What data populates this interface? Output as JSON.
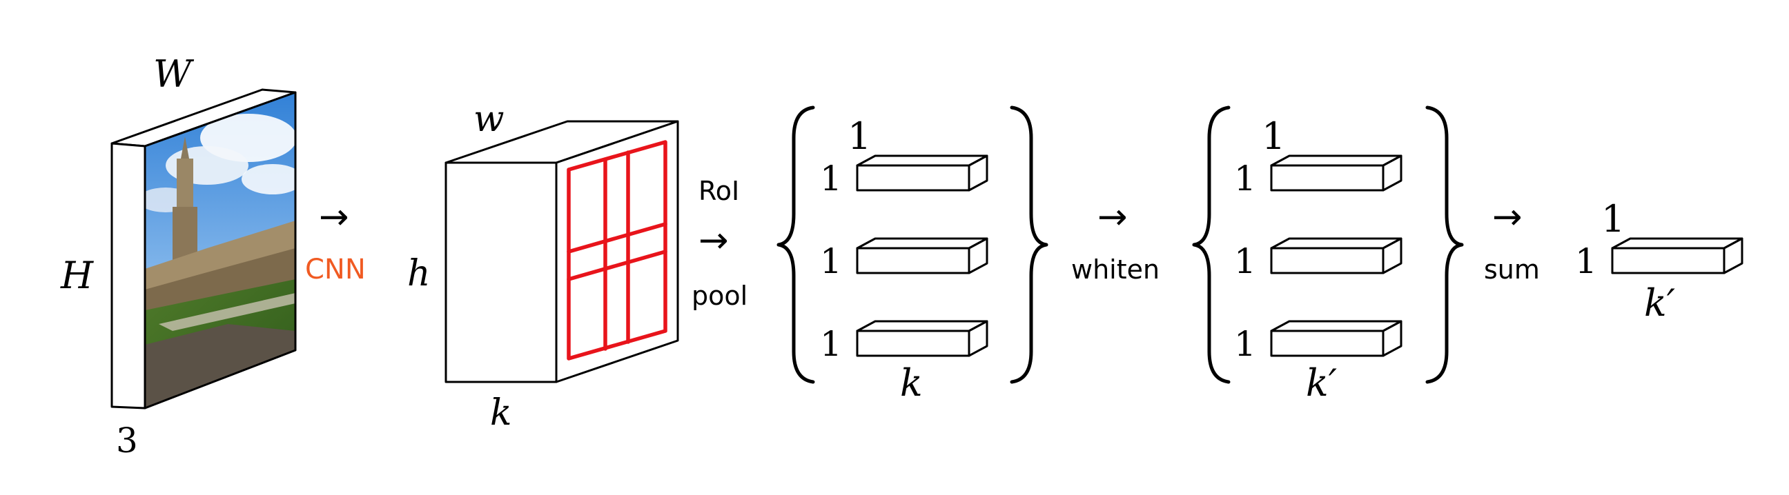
{
  "input_image": {
    "dim_width": "W",
    "dim_height": "H",
    "dim_channels": "3",
    "scene": "photo-icon"
  },
  "cnn": {
    "label": "CNN",
    "arrow": "→",
    "color": "#f05a22"
  },
  "feature_map": {
    "dim_width": "w",
    "dim_height": "h",
    "dim_channels": "k",
    "grid_color": "#e8141b"
  },
  "rmac_pool": {
    "label_top": "RoI",
    "label_bottom": "pool",
    "arrow": "→"
  },
  "region_vectors": {
    "depth_label": "1",
    "row_labels": [
      "1",
      "1",
      "1"
    ],
    "length_label": "k"
  },
  "whiten": {
    "label": "whiten",
    "arrow": "→"
  },
  "whitened_vectors": {
    "depth_label": "1",
    "row_labels": [
      "1",
      "1",
      "1"
    ],
    "length_label": "k′"
  },
  "sum": {
    "label": "sum",
    "arrow": "→"
  },
  "final_vector": {
    "depth_label": "1",
    "row_label": "1",
    "length_label": "k′"
  }
}
